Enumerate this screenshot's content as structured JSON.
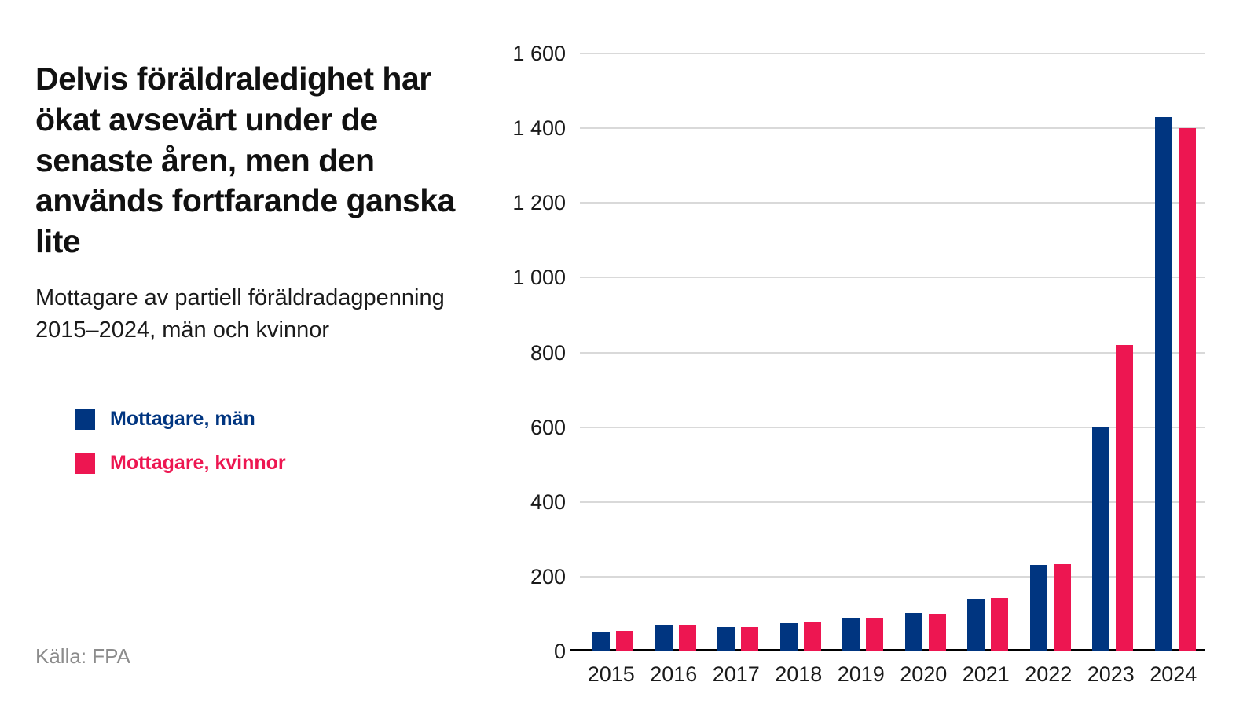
{
  "header": {
    "title": "Delvis föräldraledighet har ökat avsevärt under de senaste åren, men den används fortfarande ganska lite",
    "subtitle": "Mottagare av partiell föräldradagpenning 2015–2024, män och kvinnor"
  },
  "legend": {
    "items": [
      {
        "label": "Mottagare, män",
        "color": "#003580"
      },
      {
        "label": "Mottagare, kvinnor",
        "color": "#ED1651"
      }
    ]
  },
  "source": {
    "label": "Källa: FPA"
  },
  "colors": {
    "men": "#003580",
    "women": "#ED1651",
    "grid": "#d9d9d9",
    "axis": "#000000",
    "source_text": "#8c8c8c"
  },
  "chart_data": {
    "type": "bar",
    "title": "Mottagare av partiell föräldradagpenning 2015–2024, män och kvinnor",
    "categories": [
      "2015",
      "2016",
      "2017",
      "2018",
      "2019",
      "2020",
      "2021",
      "2022",
      "2023",
      "2024"
    ],
    "series": [
      {
        "name": "Mottagare, män",
        "color": "#003580",
        "values": [
          52,
          70,
          66,
          75,
          90,
          104,
          140,
          232,
          600,
          1430
        ]
      },
      {
        "name": "Mottagare, kvinnor",
        "color": "#ED1651",
        "values": [
          55,
          70,
          65,
          78,
          90,
          101,
          142,
          233,
          820,
          1400
        ]
      }
    ],
    "xlabel": "",
    "ylabel": "",
    "ylim": [
      0,
      1600
    ],
    "ytick_step": 200,
    "ytick_labels": [
      "0",
      "200",
      "400",
      "600",
      "800",
      "1 000",
      "1 200",
      "1 400",
      "1 600"
    ],
    "grid": true,
    "legend_position": "left"
  }
}
